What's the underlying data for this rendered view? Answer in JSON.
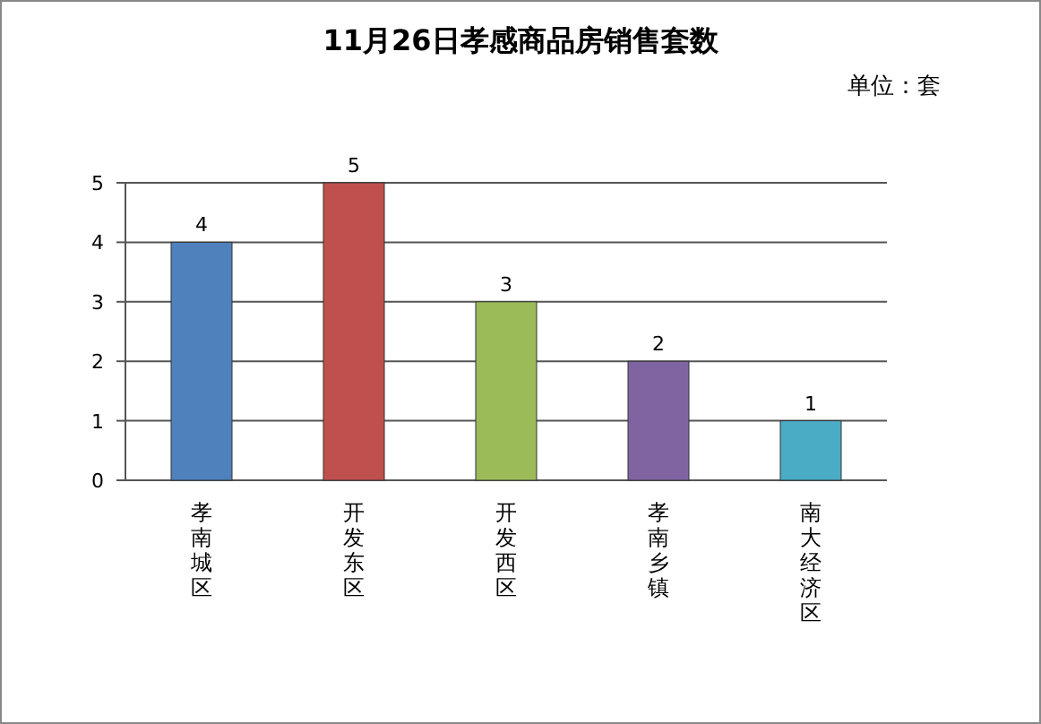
{
  "chart_data": {
    "type": "bar",
    "title": "11月26日孝感商品房销售套数",
    "subtitle": "单位：套",
    "categories": [
      "孝南城区",
      "开发东区",
      "开发西区",
      "孝南乡镇",
      "南大经济区"
    ],
    "values": [
      4,
      5,
      3,
      2,
      1
    ],
    "colors": [
      "#4f81bd",
      "#c0504d",
      "#9bbb59",
      "#8064a2",
      "#4bacc6"
    ],
    "ylim": [
      0,
      5
    ],
    "yticks": [
      0,
      1,
      2,
      3,
      4,
      5
    ],
    "grid": "y",
    "data_labels": true
  }
}
